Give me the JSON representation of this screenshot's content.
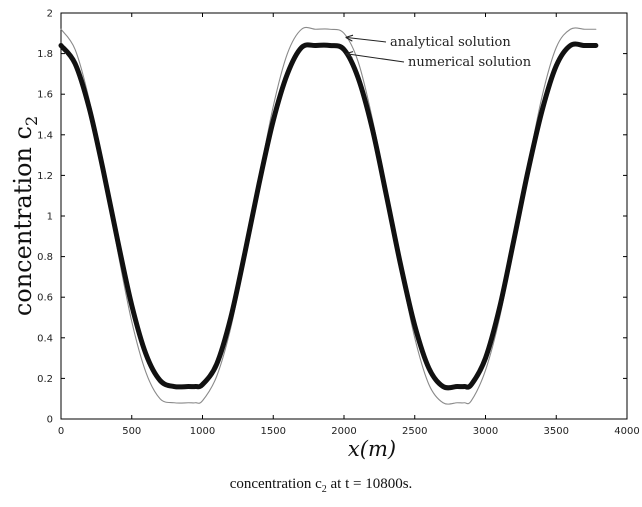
{
  "chart_data": {
    "type": "line",
    "title": "",
    "xlabel": "x(m)",
    "ylabel": "concentration c",
    "ylabel_subscript": "2",
    "xlim": [
      0,
      4000
    ],
    "ylim": [
      0,
      2
    ],
    "xticks": [
      "0",
      "500",
      "1000",
      "1500",
      "2000",
      "2500",
      "3000",
      "3500",
      "4000"
    ],
    "yticks": [
      "0",
      "0.2",
      "0.4",
      "0.6",
      "0.8",
      "1",
      "1.2",
      "1.4",
      "1.6",
      "1.8",
      "2"
    ],
    "grid": false,
    "series": [
      {
        "name": "analytical solution",
        "style": "thin",
        "x": [
          0,
          100,
          200,
          300,
          400,
          500,
          600,
          700,
          800,
          900,
          950,
          1000,
          1100,
          1200,
          1300,
          1400,
          1500,
          1600,
          1700,
          1800,
          1900,
          2000,
          2100,
          2200,
          2300,
          2400,
          2500,
          2600,
          2700,
          2800,
          2850,
          2900,
          3000,
          3100,
          3200,
          3300,
          3400,
          3500,
          3600,
          3700,
          3780
        ],
        "y": [
          1.92,
          1.82,
          1.57,
          1.22,
          0.83,
          0.48,
          0.23,
          0.1,
          0.08,
          0.08,
          0.08,
          0.09,
          0.21,
          0.45,
          0.8,
          1.18,
          1.54,
          1.8,
          1.92,
          1.92,
          1.92,
          1.9,
          1.76,
          1.48,
          1.12,
          0.74,
          0.4,
          0.17,
          0.08,
          0.08,
          0.08,
          0.09,
          0.24,
          0.5,
          0.86,
          1.24,
          1.59,
          1.83,
          1.92,
          1.92,
          1.92
        ]
      },
      {
        "name": "numerical solution",
        "style": "thick",
        "x": [
          0,
          100,
          200,
          300,
          400,
          500,
          600,
          700,
          800,
          900,
          950,
          1000,
          1100,
          1200,
          1300,
          1400,
          1500,
          1600,
          1700,
          1800,
          1900,
          2000,
          2100,
          2200,
          2300,
          2400,
          2500,
          2600,
          2700,
          2800,
          2850,
          2900,
          3000,
          3100,
          3200,
          3300,
          3400,
          3500,
          3600,
          3700,
          3780
        ],
        "y": [
          1.84,
          1.75,
          1.53,
          1.22,
          0.88,
          0.56,
          0.32,
          0.19,
          0.16,
          0.16,
          0.16,
          0.17,
          0.27,
          0.5,
          0.82,
          1.16,
          1.47,
          1.7,
          1.83,
          1.84,
          1.84,
          1.82,
          1.68,
          1.43,
          1.1,
          0.76,
          0.46,
          0.25,
          0.16,
          0.16,
          0.16,
          0.17,
          0.3,
          0.55,
          0.88,
          1.22,
          1.52,
          1.74,
          1.84,
          1.84,
          1.84
        ]
      }
    ],
    "annotations": [
      "analytical solution",
      "numerical solution"
    ]
  },
  "caption": {
    "prefix": "concentration c",
    "subscript": "2",
    "suffix": " at t = 10800s."
  }
}
